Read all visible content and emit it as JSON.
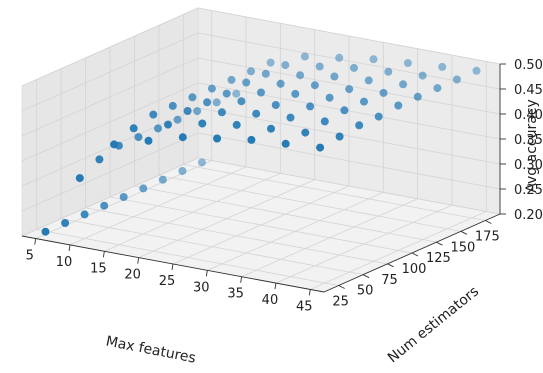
{
  "chart_data": {
    "type": "scatter",
    "projection": "3d",
    "title": "",
    "xlabel": "Max features",
    "ylabel": "Num estimators",
    "zlabel": "Avg accuracy",
    "grid": true,
    "marker_color": "#1f77b4",
    "xlim": [
      3,
      47
    ],
    "ylim": [
      10,
      190
    ],
    "zlim": [
      0.2,
      0.5
    ],
    "x_ticks": [
      "5",
      "10",
      "15",
      "20",
      "25",
      "30",
      "35",
      "40",
      "45"
    ],
    "y_ticks": [
      "25",
      "50",
      "75",
      "100",
      "125",
      "150",
      "175"
    ],
    "z_ticks": [
      "0.20",
      "0.25",
      "0.30",
      "0.35",
      "0.40",
      "0.45",
      "0.50"
    ],
    "x_values": [
      5,
      10,
      15,
      20,
      25,
      30,
      35,
      40,
      45
    ],
    "y_values": [
      20,
      40,
      60,
      80,
      100,
      120,
      140,
      160,
      180
    ],
    "z_grid": [
      [
        0.205,
        0.325,
        0.405,
        0.425,
        0.445,
        0.455,
        0.465,
        0.47,
        0.475
      ],
      [
        0.205,
        0.345,
        0.42,
        0.44,
        0.455,
        0.465,
        0.47,
        0.475,
        0.48
      ],
      [
        0.205,
        0.355,
        0.43,
        0.45,
        0.46,
        0.47,
        0.475,
        0.48,
        0.485
      ],
      [
        0.205,
        0.355,
        0.43,
        0.45,
        0.465,
        0.47,
        0.48,
        0.485,
        0.485
      ],
      [
        0.205,
        0.355,
        0.43,
        0.45,
        0.465,
        0.475,
        0.48,
        0.485,
        0.49
      ],
      [
        0.205,
        0.355,
        0.43,
        0.455,
        0.465,
        0.475,
        0.48,
        0.485,
        0.49
      ],
      [
        0.205,
        0.355,
        0.43,
        0.455,
        0.465,
        0.475,
        0.48,
        0.485,
        0.49
      ],
      [
        0.205,
        0.355,
        0.43,
        0.455,
        0.465,
        0.475,
        0.48,
        0.485,
        0.49
      ],
      [
        0.205,
        0.355,
        0.43,
        0.455,
        0.465,
        0.475,
        0.48,
        0.485,
        0.49
      ]
    ]
  }
}
